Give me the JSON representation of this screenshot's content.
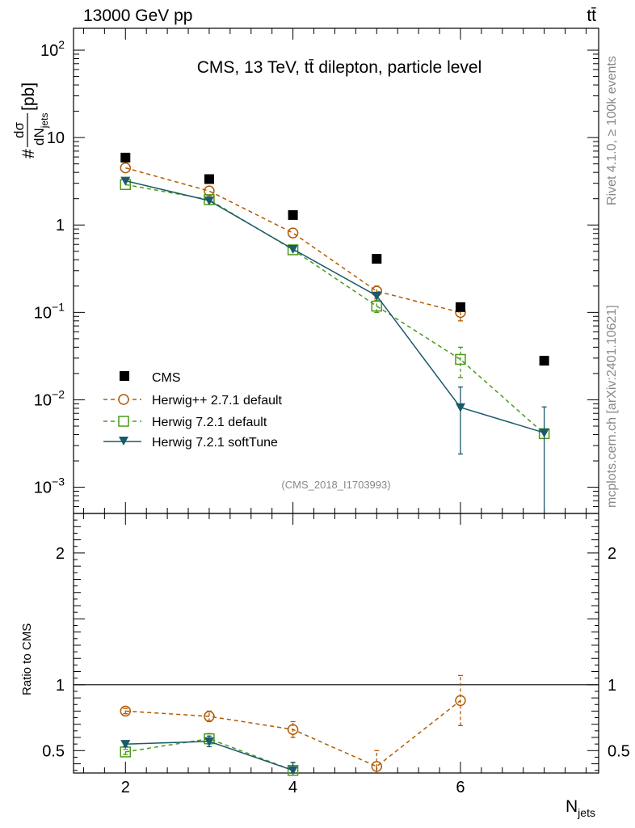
{
  "header": {
    "left": "13000 GeV pp",
    "right": "tt̄"
  },
  "side_labels": {
    "rivet": "Rivet 4.1.0, ≥ 100k events",
    "mcplots": "mcplots.cern.ch [arXiv:2401.10621]"
  },
  "chart_data": [
    {
      "type": "scatter",
      "title": "CMS, 13 TeV, tt̄ dilepton, particle level",
      "analysis_id": "(CMS_2018_I1703993)",
      "yscale": "log",
      "ylabel": "# dσ/dN_jets [pb]",
      "ylabel_parts": {
        "hash": "#",
        "num": "dσ",
        "den": "dN",
        "den_sub": "jets",
        "unit": "[pb]"
      },
      "xlim": [
        1.38,
        7.65
      ],
      "ylim_log10": [
        -3.3,
        2.25
      ],
      "y_ticks": [
        {
          "value": 100,
          "label": "10",
          "exp": "2"
        },
        {
          "value": 10,
          "label": "10",
          "exp": ""
        },
        {
          "value": 1,
          "label": "1",
          "exp": ""
        },
        {
          "value": 0.1,
          "label": "10",
          "exp": "−1"
        },
        {
          "value": 0.01,
          "label": "10",
          "exp": "−2"
        },
        {
          "value": 0.001,
          "label": "10",
          "exp": "−3"
        }
      ],
      "legend_position": "lower-left",
      "series": [
        {
          "name": "CMS",
          "style": "data",
          "marker": "square-filled",
          "color": "#000000",
          "x": [
            2,
            3,
            4,
            5,
            6,
            7
          ],
          "y": [
            5.9,
            3.35,
            1.3,
            0.41,
            0.115,
            0.028
          ]
        },
        {
          "name": "Herwig++ 2.7.1 default",
          "style": "dashed",
          "marker": "circle-open",
          "color": "#b35a00",
          "x": [
            2,
            3,
            4,
            5,
            6
          ],
          "y": [
            4.5,
            2.45,
            0.81,
            0.175,
            0.1
          ],
          "err_lo": [
            null,
            null,
            null,
            0.145,
            0.08
          ],
          "err_hi": [
            null,
            null,
            null,
            0.2,
            0.122
          ]
        },
        {
          "name": "Herwig 7.2.1 default",
          "style": "dashed",
          "marker": "square-open",
          "color": "#4c9a1a",
          "x": [
            2,
            3,
            4,
            5,
            6,
            7
          ],
          "y": [
            2.9,
            1.95,
            0.52,
            0.118,
            0.029,
            0.0041
          ],
          "err_lo": [
            null,
            null,
            null,
            0.1,
            0.018,
            null
          ],
          "err_hi": [
            null,
            null,
            null,
            0.138,
            0.04,
            null
          ]
        },
        {
          "name": "Herwig 7.2.1 softTune",
          "style": "solid",
          "marker": "triangle-down-filled",
          "color": "#1a5a6a",
          "x": [
            2,
            3,
            4,
            5,
            6,
            7
          ],
          "y": [
            3.2,
            1.9,
            0.53,
            0.155,
            0.0082,
            0.0042
          ],
          "err_lo": [
            null,
            null,
            null,
            null,
            0.0024,
            0.0004
          ],
          "err_hi": [
            null,
            null,
            null,
            null,
            0.014,
            0.0083
          ]
        }
      ]
    },
    {
      "type": "scatter",
      "title": "",
      "yscale": "linear",
      "ylabel": "Ratio to CMS",
      "xlabel": "N_jets",
      "xlabel_parts": {
        "main": "N",
        "sub": "jets"
      },
      "xlim": [
        1.38,
        7.65
      ],
      "ylim": [
        0.33,
        2.3
      ],
      "x_ticks": [
        2,
        4,
        6
      ],
      "y_ticks": [
        0.5,
        1,
        2
      ],
      "reference_line": 1,
      "series": [
        {
          "name": "Herwig++ 2.7.1 default",
          "style": "dashed",
          "marker": "circle-open",
          "color": "#b35a00",
          "x": [
            2,
            3,
            4,
            5,
            6
          ],
          "y": [
            0.8,
            0.76,
            0.66,
            0.38,
            0.88
          ],
          "err_lo": [
            0.78,
            0.72,
            0.6,
            0.3,
            0.69
          ],
          "err_hi": [
            0.82,
            0.8,
            0.72,
            0.5,
            1.07
          ]
        },
        {
          "name": "Herwig 7.2.1 default",
          "style": "dashed",
          "marker": "square-open",
          "color": "#4c9a1a",
          "x": [
            2,
            3,
            4
          ],
          "y": [
            0.49,
            0.59,
            0.35
          ],
          "err_lo": [
            0.47,
            0.55,
            0.3
          ],
          "err_hi": [
            0.51,
            0.63,
            0.41
          ]
        },
        {
          "name": "Herwig 7.2.1 softTune",
          "style": "solid",
          "marker": "triangle-down-filled",
          "color": "#1a5a6a",
          "x": [
            2,
            3,
            4
          ],
          "y": [
            0.55,
            0.57,
            0.35
          ],
          "err_lo": [
            0.53,
            0.53,
            0.3
          ],
          "err_hi": [
            0.57,
            0.61,
            0.41
          ]
        }
      ]
    }
  ]
}
